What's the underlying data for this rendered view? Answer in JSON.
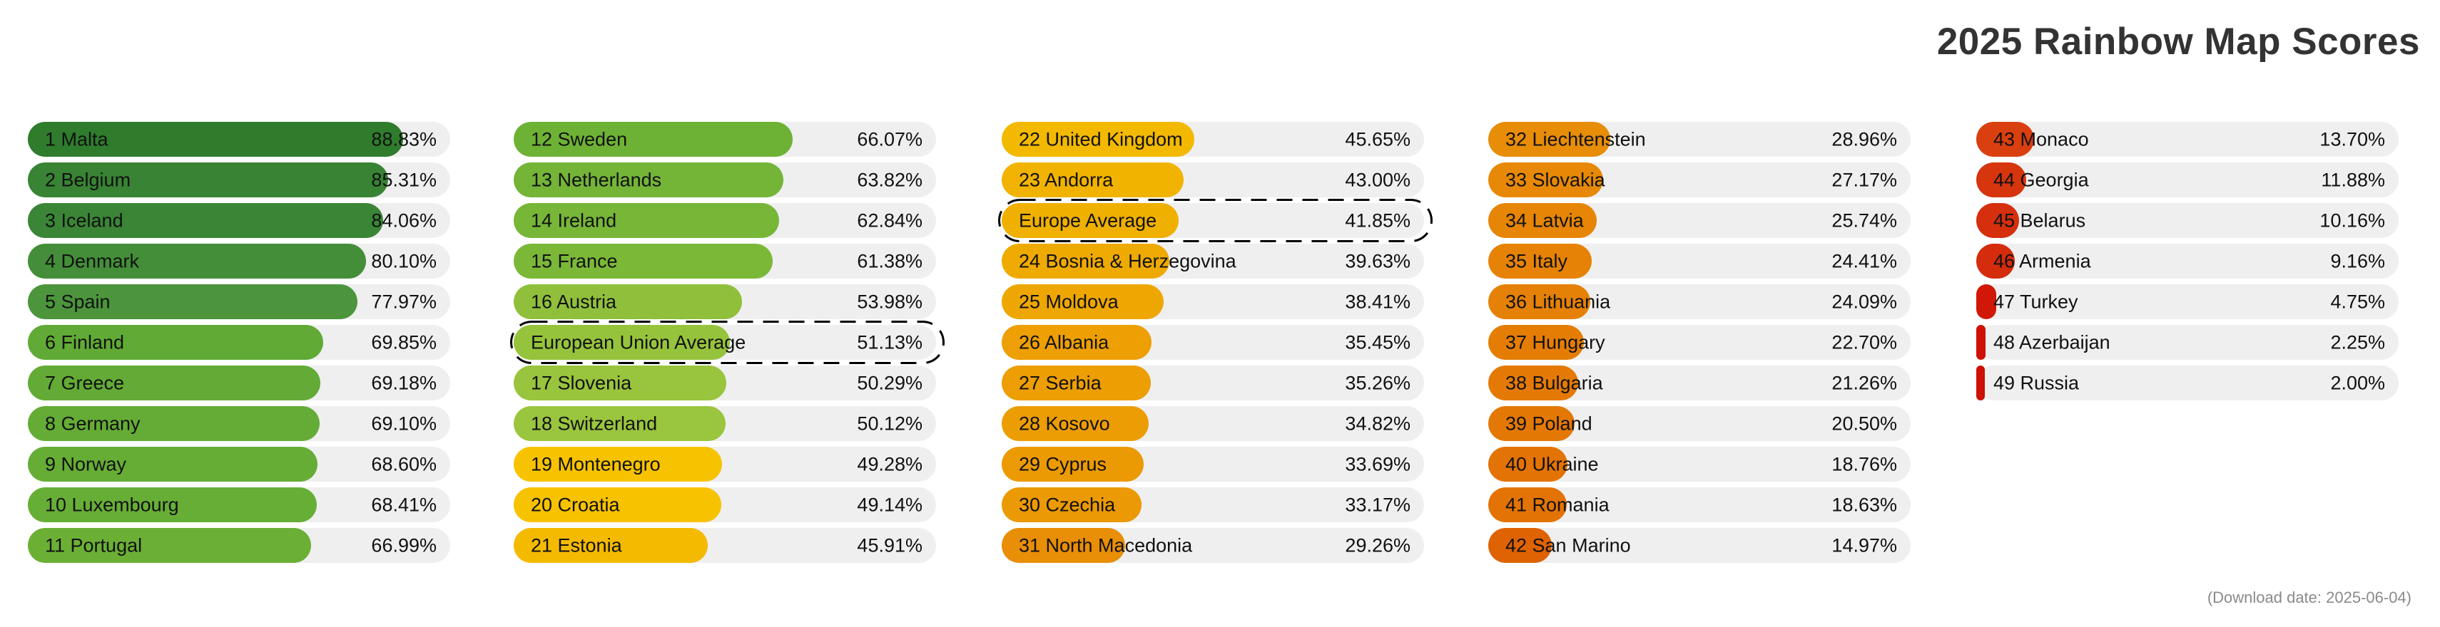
{
  "title": "2025 Rainbow Map Scores",
  "footer": {
    "text": "(Download date: 2025-06-04)"
  },
  "colors": {
    "track": "#efefef",
    "title_text": "#333333",
    "footer_text": "#8a8a8a",
    "label_text": "#111111",
    "outline": "#000000"
  },
  "chart_data": {
    "type": "bar",
    "title": "2025 Rainbow Map Scores",
    "xlabel": "",
    "ylabel": "",
    "unit": "%",
    "xlim": [
      0,
      100
    ],
    "grid": false,
    "legend": "none",
    "annotation": "(Download date: 2025-06-04)",
    "highlighted_rows": [
      "European Union Average",
      "Europe Average"
    ],
    "columns": [
      {
        "rows": [
          {
            "rank": "1",
            "name": "Malta",
            "label": "1 Malta",
            "value": 88.83,
            "display": "88.83%",
            "color": "#2f7c2d",
            "outlined": false
          },
          {
            "rank": "2",
            "name": "Belgium",
            "label": "2 Belgium",
            "value": 85.31,
            "display": "85.31%",
            "color": "#388334",
            "outlined": false
          },
          {
            "rank": "3",
            "name": "Iceland",
            "label": "3 Iceland",
            "value": 84.06,
            "display": "84.06%",
            "color": "#3a8536",
            "outlined": false
          },
          {
            "rank": "4",
            "name": "Denmark",
            "label": "4 Denmark",
            "value": 80.1,
            "display": "80.10%",
            "color": "#448e39",
            "outlined": false
          },
          {
            "rank": "5",
            "name": "Spain",
            "label": "5 Spain",
            "value": 77.97,
            "display": "77.97%",
            "color": "#4c953c",
            "outlined": false
          },
          {
            "rank": "6",
            "name": "Finland",
            "label": "6 Finland",
            "value": 69.85,
            "display": "69.85%",
            "color": "#61aa35",
            "outlined": false
          },
          {
            "rank": "7",
            "name": "Greece",
            "label": "7 Greece",
            "value": 69.18,
            "display": "69.18%",
            "color": "#63ab36",
            "outlined": false
          },
          {
            "rank": "8",
            "name": "Germany",
            "label": "8 Germany",
            "value": 69.1,
            "display": "69.10%",
            "color": "#64ac36",
            "outlined": false
          },
          {
            "rank": "9",
            "name": "Norway",
            "label": "9 Norway",
            "value": 68.6,
            "display": "68.60%",
            "color": "#66ad36",
            "outlined": false
          },
          {
            "rank": "10",
            "name": "Luxembourg",
            "label": "10 Luxembourg",
            "value": 68.41,
            "display": "68.41%",
            "color": "#67ae36",
            "outlined": false
          },
          {
            "rank": "11",
            "name": "Portugal",
            "label": "11 Portugal",
            "value": 66.99,
            "display": "66.99%",
            "color": "#6bb035",
            "outlined": false
          }
        ]
      },
      {
        "rows": [
          {
            "rank": "12",
            "name": "Sweden",
            "label": "12 Sweden",
            "value": 66.07,
            "display": "66.07%",
            "color": "#6eb235",
            "outlined": false
          },
          {
            "rank": "13",
            "name": "Netherlands",
            "label": "13 Netherlands",
            "value": 63.82,
            "display": "63.82%",
            "color": "#74b437",
            "outlined": false
          },
          {
            "rank": "14",
            "name": "Ireland",
            "label": "14 Ireland",
            "value": 62.84,
            "display": "62.84%",
            "color": "#77b637",
            "outlined": false
          },
          {
            "rank": "15",
            "name": "France",
            "label": "15 France",
            "value": 61.38,
            "display": "61.38%",
            "color": "#7bb838",
            "outlined": false
          },
          {
            "rank": "16",
            "name": "Austria",
            "label": "16 Austria",
            "value": 53.98,
            "display": "53.98%",
            "color": "#90c03b",
            "outlined": false
          },
          {
            "rank": "",
            "name": "European Union Average",
            "label": "European Union Average",
            "value": 51.13,
            "display": "51.13%",
            "color": "#96c33c",
            "outlined": true
          },
          {
            "rank": "17",
            "name": "Slovenia",
            "label": "17 Slovenia",
            "value": 50.29,
            "display": "50.29%",
            "color": "#99c43d",
            "outlined": false
          },
          {
            "rank": "18",
            "name": "Switzerland",
            "label": "18 Switzerland",
            "value": 50.12,
            "display": "50.12%",
            "color": "#9ac53e",
            "outlined": false
          },
          {
            "rank": "19",
            "name": "Montenegro",
            "label": "19 Montenegro",
            "value": 49.28,
            "display": "49.28%",
            "color": "#f7c300",
            "outlined": false
          },
          {
            "rank": "20",
            "name": "Croatia",
            "label": "20 Croatia",
            "value": 49.14,
            "display": "49.14%",
            "color": "#f7c200",
            "outlined": false
          },
          {
            "rank": "21",
            "name": "Estonia",
            "label": "21 Estonia",
            "value": 45.91,
            "display": "45.91%",
            "color": "#f4ba00",
            "outlined": false
          }
        ]
      },
      {
        "rows": [
          {
            "rank": "22",
            "name": "United Kingdom",
            "label": "22 United Kingdom",
            "value": 45.65,
            "display": "45.65%",
            "color": "#f3b900",
            "outlined": false
          },
          {
            "rank": "23",
            "name": "Andorra",
            "label": "23 Andorra",
            "value": 43.0,
            "display": "43.00%",
            "color": "#f1b300",
            "outlined": false
          },
          {
            "rank": "",
            "name": "Europe Average",
            "label": "Europe Average",
            "value": 41.85,
            "display": "41.85%",
            "color": "#f0b000",
            "outlined": true
          },
          {
            "rank": "24",
            "name": "Bosnia & Herzegovina",
            "label": "24 Bosnia & Herzegovina",
            "value": 39.63,
            "display": "39.63%",
            "color": "#efaa01",
            "outlined": false
          },
          {
            "rank": "25",
            "name": "Moldova",
            "label": "25 Moldova",
            "value": 38.41,
            "display": "38.41%",
            "color": "#eea702",
            "outlined": false
          },
          {
            "rank": "26",
            "name": "Albania",
            "label": "26 Albania",
            "value": 35.45,
            "display": "35.45%",
            "color": "#ed9f03",
            "outlined": false
          },
          {
            "rank": "27",
            "name": "Serbia",
            "label": "27 Serbia",
            "value": 35.26,
            "display": "35.26%",
            "color": "#ec9e03",
            "outlined": false
          },
          {
            "rank": "28",
            "name": "Kosovo",
            "label": "28 Kosovo",
            "value": 34.82,
            "display": "34.82%",
            "color": "#ec9d03",
            "outlined": false
          },
          {
            "rank": "29",
            "name": "Cyprus",
            "label": "29 Cyprus",
            "value": 33.69,
            "display": "33.69%",
            "color": "#eb9a04",
            "outlined": false
          },
          {
            "rank": "30",
            "name": "Czechia",
            "label": "30 Czechia",
            "value": 33.17,
            "display": "33.17%",
            "color": "#eb9904",
            "outlined": false
          },
          {
            "rank": "31",
            "name": "North Macedonia",
            "label": "31 North Macedonia",
            "value": 29.26,
            "display": "29.26%",
            "color": "#e88e07",
            "outlined": false
          }
        ]
      },
      {
        "rows": [
          {
            "rank": "32",
            "name": "Liechtenstein",
            "label": "32 Liechtenstein",
            "value": 28.96,
            "display": "28.96%",
            "color": "#e88d07",
            "outlined": false
          },
          {
            "rank": "33",
            "name": "Slovakia",
            "label": "33 Slovakia",
            "value": 27.17,
            "display": "27.17%",
            "color": "#e78907",
            "outlined": false
          },
          {
            "rank": "34",
            "name": "Latvia",
            "label": "34 Latvia",
            "value": 25.74,
            "display": "25.74%",
            "color": "#e68506",
            "outlined": false
          },
          {
            "rank": "35",
            "name": "Italy",
            "label": "35 Italy",
            "value": 24.41,
            "display": "24.41%",
            "color": "#e68206",
            "outlined": false
          },
          {
            "rank": "36",
            "name": "Lithuania",
            "label": "36 Lithuania",
            "value": 24.09,
            "display": "24.09%",
            "color": "#e58106",
            "outlined": false
          },
          {
            "rank": "37",
            "name": "Hungary",
            "label": "37 Hungary",
            "value": 22.7,
            "display": "22.70%",
            "color": "#e57d05",
            "outlined": false
          },
          {
            "rank": "38",
            "name": "Bulgaria",
            "label": "38 Bulgaria",
            "value": 21.26,
            "display": "21.26%",
            "color": "#e47a05",
            "outlined": false
          },
          {
            "rank": "39",
            "name": "Poland",
            "label": "39 Poland",
            "value": 20.5,
            "display": "20.50%",
            "color": "#e47805",
            "outlined": false
          },
          {
            "rank": "40",
            "name": "Ukraine",
            "label": "40 Ukraine",
            "value": 18.76,
            "display": "18.76%",
            "color": "#e37304",
            "outlined": false
          },
          {
            "rank": "41",
            "name": "Romania",
            "label": "41 Romania",
            "value": 18.63,
            "display": "18.63%",
            "color": "#e37304",
            "outlined": false
          },
          {
            "rank": "42",
            "name": "San Marino",
            "label": "42 San Marino",
            "value": 14.97,
            "display": "14.97%",
            "color": "#df6203",
            "outlined": false
          }
        ]
      },
      {
        "rows": [
          {
            "rank": "43",
            "name": "Monaco",
            "label": "43 Monaco",
            "value": 13.7,
            "display": "13.70%",
            "color": "#da3f10",
            "outlined": false
          },
          {
            "rank": "44",
            "name": "Georgia",
            "label": "44 Georgia",
            "value": 11.88,
            "display": "11.88%",
            "color": "#d6350e",
            "outlined": false
          },
          {
            "rank": "45",
            "name": "Belarus",
            "label": "45 Belarus",
            "value": 10.16,
            "display": "10.16%",
            "color": "#d52f0d",
            "outlined": false
          },
          {
            "rank": "46",
            "name": "Armenia",
            "label": "46 Armenia",
            "value": 9.16,
            "display": "9.16%",
            "color": "#d42c0c",
            "outlined": false
          },
          {
            "rank": "47",
            "name": "Turkey",
            "label": "47 Turkey",
            "value": 4.75,
            "display": "4.75%",
            "color": "#d01708",
            "outlined": false
          },
          {
            "rank": "48",
            "name": "Azerbaijan",
            "label": "48 Azerbaijan",
            "value": 2.25,
            "display": "2.25%",
            "color": "#cd1206",
            "outlined": false
          },
          {
            "rank": "49",
            "name": "Russia",
            "label": "49 Russia",
            "value": 2.0,
            "display": "2.00%",
            "color": "#cc1106",
            "outlined": false
          }
        ]
      }
    ]
  }
}
